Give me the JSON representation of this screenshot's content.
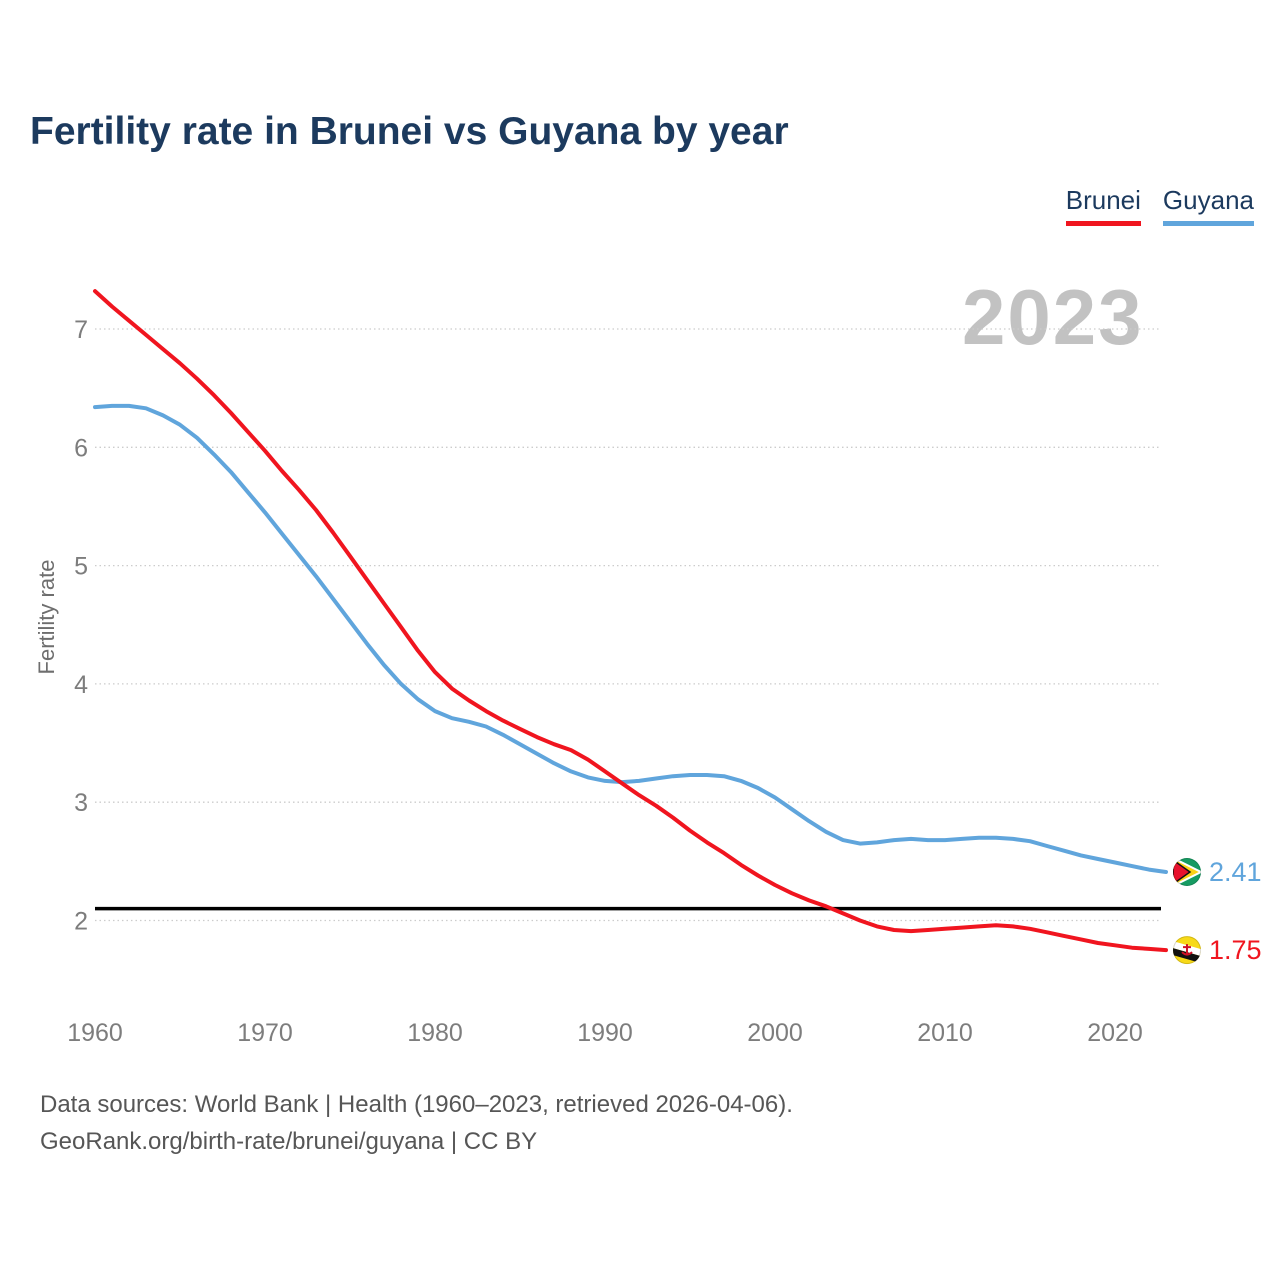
{
  "title": "Fertility rate in Brunei vs Guyana by year",
  "watermark_year": "2023",
  "footer": {
    "line1": "Data sources: World Bank | Health (1960–2023, retrieved 2026-04-06).",
    "line2": "GeoRank.org/birth-rate/brunei/guyana | CC BY"
  },
  "chart_data": {
    "type": "line",
    "title": "Fertility rate in Brunei vs Guyana by year",
    "xlabel": "",
    "ylabel": "Fertility rate",
    "x_range": [
      1960,
      2023
    ],
    "ylim": [
      1.55,
      7.45
    ],
    "yticks": [
      2,
      3,
      4,
      5,
      6,
      7
    ],
    "xticks": [
      1960,
      1970,
      1980,
      1990,
      2000,
      2010,
      2020
    ],
    "grid": "horizontal dotted",
    "grid_color": "#cccccc",
    "legend_position": "top-right",
    "reference_line": {
      "value": 2.1,
      "color": "#000000"
    },
    "series": [
      {
        "name": "Brunei",
        "color": "#f0151f",
        "flag": "brunei-flag-icon",
        "end_label": "1.75",
        "values": [
          7.32,
          7.19,
          7.07,
          6.95,
          6.83,
          6.71,
          6.58,
          6.44,
          6.29,
          6.13,
          5.97,
          5.8,
          5.64,
          5.47,
          5.28,
          5.08,
          4.88,
          4.68,
          4.48,
          4.28,
          4.1,
          3.96,
          3.86,
          3.77,
          3.69,
          3.62,
          3.55,
          3.49,
          3.44,
          3.36,
          3.26,
          3.16,
          3.06,
          2.97,
          2.87,
          2.76,
          2.66,
          2.57,
          2.47,
          2.38,
          2.3,
          2.23,
          2.17,
          2.12,
          2.06,
          2.0,
          1.95,
          1.92,
          1.91,
          1.92,
          1.93,
          1.94,
          1.95,
          1.96,
          1.95,
          1.93,
          1.9,
          1.87,
          1.84,
          1.81,
          1.79,
          1.77,
          1.76,
          1.75
        ]
      },
      {
        "name": "Guyana",
        "color": "#60a5dc",
        "flag": "guyana-flag-icon",
        "end_label": "2.41",
        "values": [
          6.34,
          6.35,
          6.35,
          6.33,
          6.27,
          6.19,
          6.08,
          5.94,
          5.79,
          5.62,
          5.45,
          5.27,
          5.09,
          4.91,
          4.72,
          4.53,
          4.34,
          4.16,
          4.0,
          3.87,
          3.77,
          3.71,
          3.68,
          3.64,
          3.57,
          3.49,
          3.41,
          3.33,
          3.26,
          3.21,
          3.18,
          3.17,
          3.18,
          3.2,
          3.22,
          3.23,
          3.23,
          3.22,
          3.18,
          3.12,
          3.04,
          2.94,
          2.84,
          2.75,
          2.68,
          2.65,
          2.66,
          2.68,
          2.69,
          2.68,
          2.68,
          2.69,
          2.7,
          2.7,
          2.69,
          2.67,
          2.63,
          2.59,
          2.55,
          2.52,
          2.49,
          2.46,
          2.43,
          2.41
        ]
      }
    ],
    "flag_colors": {
      "guyana": {
        "green": "#169b62",
        "yellow": "#fcd116",
        "red": "#e8112d",
        "white": "#ffffff",
        "black": "#111111"
      },
      "brunei": {
        "yellow": "#f7d917",
        "white": "#ffffff",
        "black": "#111111",
        "red": "#cf1126"
      }
    }
  }
}
